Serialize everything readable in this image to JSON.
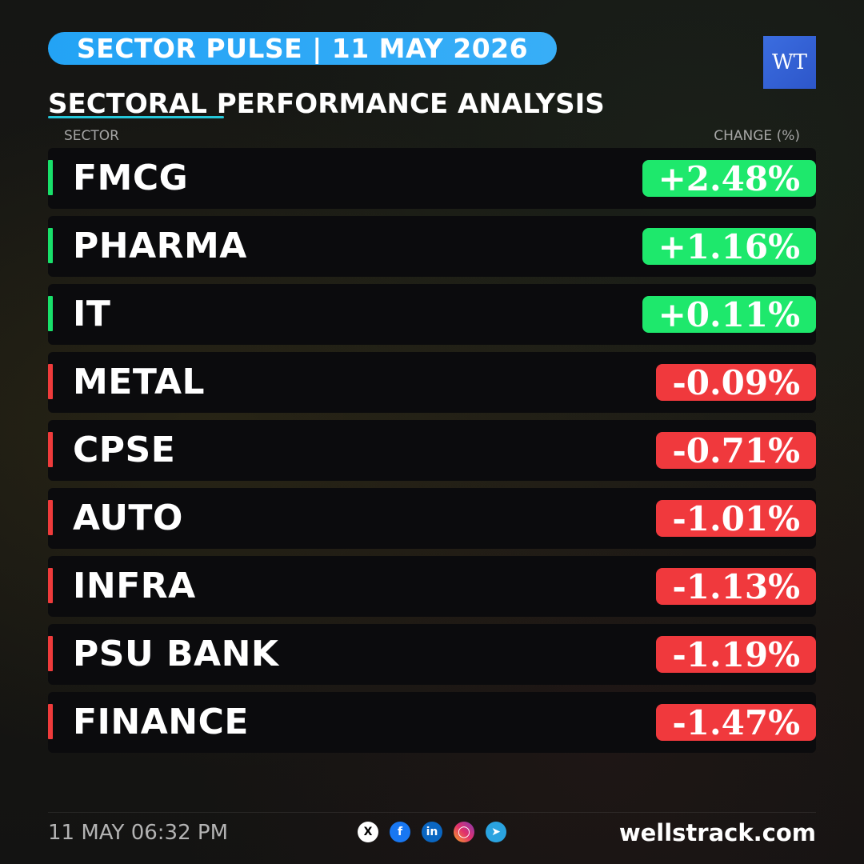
{
  "header": {
    "title": "SECTOR PULSE | 11 MAY 2026",
    "logo": "WT"
  },
  "subtitle": "SECTORAL PERFORMANCE ANALYSIS",
  "columns": {
    "sector": "SECTOR",
    "change": "CHANGE (%)"
  },
  "colors": {
    "positive": "#1ee86c",
    "negative": "#f0393d",
    "header_pill": "#23a3f5"
  },
  "sectors": [
    {
      "name": "FMCG",
      "change": "+2.48%",
      "direction": "pos"
    },
    {
      "name": "PHARMA",
      "change": "+1.16%",
      "direction": "pos"
    },
    {
      "name": "IT",
      "change": "+0.11%",
      "direction": "pos"
    },
    {
      "name": "METAL",
      "change": "-0.09%",
      "direction": "neg"
    },
    {
      "name": "CPSE",
      "change": "-0.71%",
      "direction": "neg"
    },
    {
      "name": "AUTO",
      "change": "-1.01%",
      "direction": "neg"
    },
    {
      "name": "INFRA",
      "change": "-1.13%",
      "direction": "neg"
    },
    {
      "name": "PSU BANK",
      "change": "-1.19%",
      "direction": "neg"
    },
    {
      "name": "FINANCE",
      "change": "-1.47%",
      "direction": "neg"
    }
  ],
  "footer": {
    "timestamp": "11 MAY 06:32 PM",
    "website": "wellstrack.com",
    "social_icons": [
      "x-icon",
      "facebook-icon",
      "linkedin-icon",
      "instagram-icon",
      "telegram-icon"
    ]
  }
}
